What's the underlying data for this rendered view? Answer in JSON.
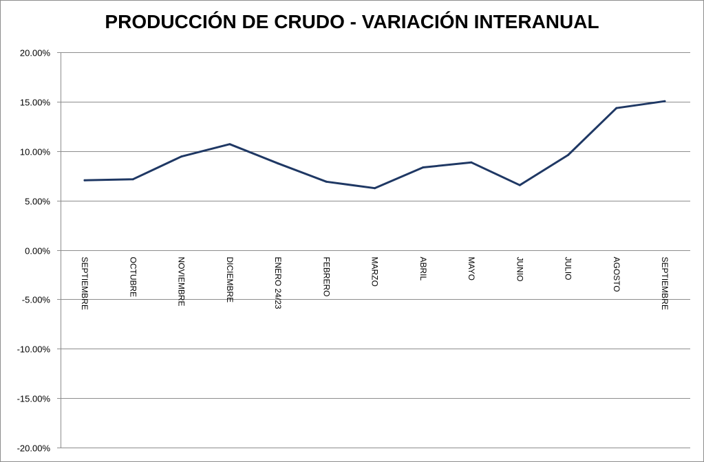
{
  "chart_data": {
    "type": "line",
    "title": "PRODUCCIÓN DE CRUDO - VARIACIÓN INTERANUAL",
    "xlabel": "",
    "ylabel": "",
    "ylim": [
      -0.2,
      0.2
    ],
    "y_ticks": [
      0.2,
      0.15,
      0.1,
      0.05,
      0.0,
      -0.05,
      -0.1,
      -0.15,
      -0.2
    ],
    "y_tick_labels": [
      "20.00%",
      "15.00%",
      "10.00%",
      "5.00%",
      "0.00%",
      "-5.00%",
      "-10.00%",
      "-15.00%",
      "-20.00%"
    ],
    "grid": true,
    "legend": "none",
    "categories": [
      "SEPTIEMBRE",
      "OCTUBRE",
      "NOVIEMBRE",
      "DICIEMBRE",
      "ENERO 24/23",
      "FEBRERO",
      "MARZO",
      "ABRIL",
      "MAYO",
      "JUNIO",
      "JULIO",
      "AGOSTO",
      "SEPTIEMBRE"
    ],
    "series": [
      {
        "values": [
          0.0705,
          0.0715,
          0.0945,
          0.107,
          0.0875,
          0.069,
          0.0625,
          0.0835,
          0.0885,
          0.0655,
          0.096,
          0.1435,
          0.1505
        ],
        "color": "#1f3864"
      }
    ]
  }
}
